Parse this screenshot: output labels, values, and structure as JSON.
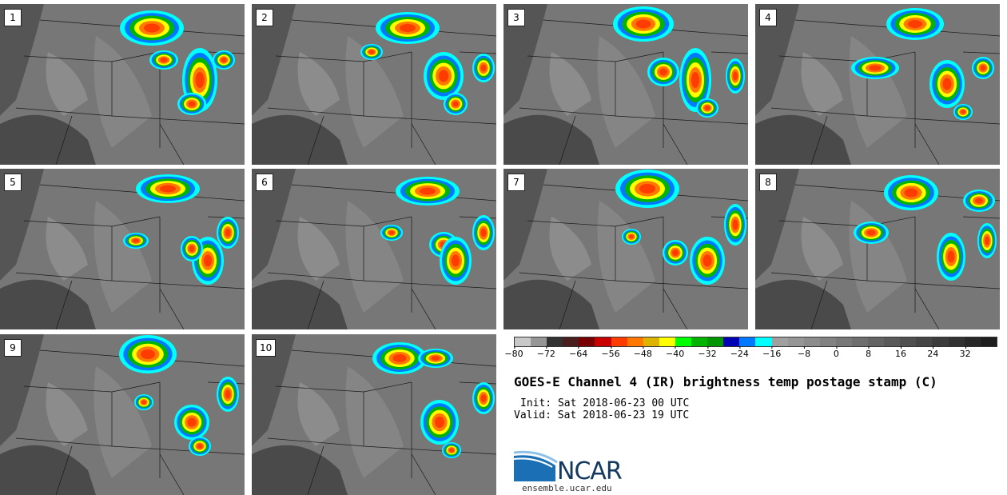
{
  "panels": [
    "1",
    "2",
    "3",
    "4",
    "5",
    "6",
    "7",
    "8",
    "9",
    "10"
  ],
  "colorbar": {
    "colors": [
      "#c8c8c8",
      "#969696",
      "#323232",
      "#4b1e1e",
      "#780000",
      "#c80000",
      "#ff3c00",
      "#ff7800",
      "#dcb400",
      "#ffff00",
      "#00ff00",
      "#00b400",
      "#009600",
      "#0000b4",
      "#0078ff",
      "#00ffff",
      "#a0a0a0",
      "#969696",
      "#8c8c8c",
      "#828282",
      "#787878",
      "#6e6e6e",
      "#646464",
      "#5a5a5a",
      "#505050",
      "#464646",
      "#3c3c3c",
      "#323232",
      "#282828",
      "#1e1e1e"
    ],
    "tick_labels": [
      "−80",
      "−72",
      "−64",
      "−56",
      "−48",
      "−40",
      "−32",
      "−24",
      "−16",
      "−8",
      "0",
      "8",
      "16",
      "24",
      "32"
    ]
  },
  "title": "GOES-E Channel 4 (IR) brightness temp postage stamp (C)",
  "init": "Init: Sat 2018-06-23 00 UTC",
  "valid": "Valid: Sat 2018-06-23 19 UTC",
  "logo": {
    "word": "NCAR",
    "url": "ensemble.ucar.edu"
  }
}
